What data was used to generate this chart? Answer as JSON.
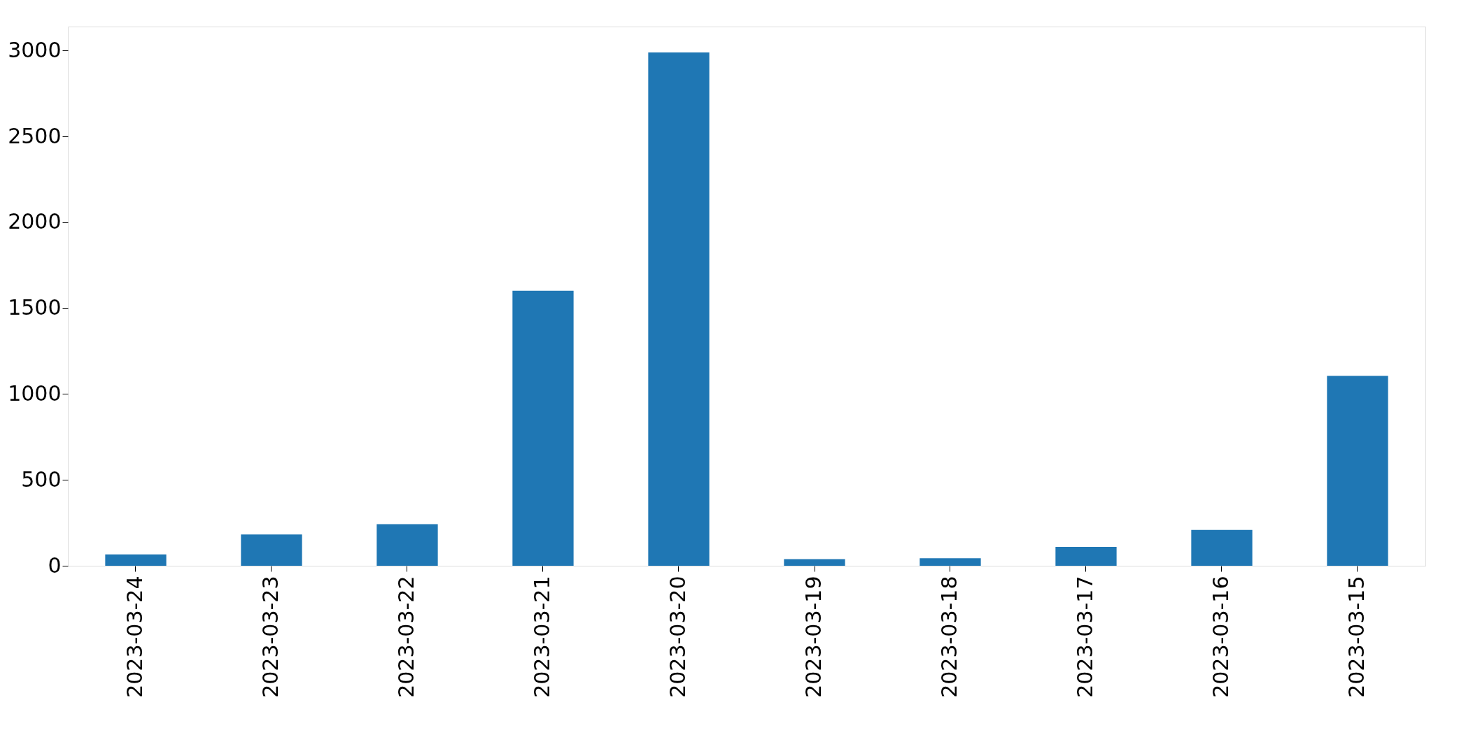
{
  "chart_data": {
    "type": "bar",
    "categories": [
      "2023-03-24",
      "2023-03-23",
      "2023-03-22",
      "2023-03-21",
      "2023-03-20",
      "2023-03-19",
      "2023-03-18",
      "2023-03-17",
      "2023-03-16",
      "2023-03-15"
    ],
    "values": [
      66,
      182,
      242,
      1602,
      2989,
      39,
      44,
      110,
      209,
      1106
    ],
    "color": "#1f77b4",
    "ylim": [
      0,
      3140
    ],
    "yticks": [
      0,
      500,
      1000,
      1500,
      2000,
      2500,
      3000
    ],
    "grid": false
  }
}
